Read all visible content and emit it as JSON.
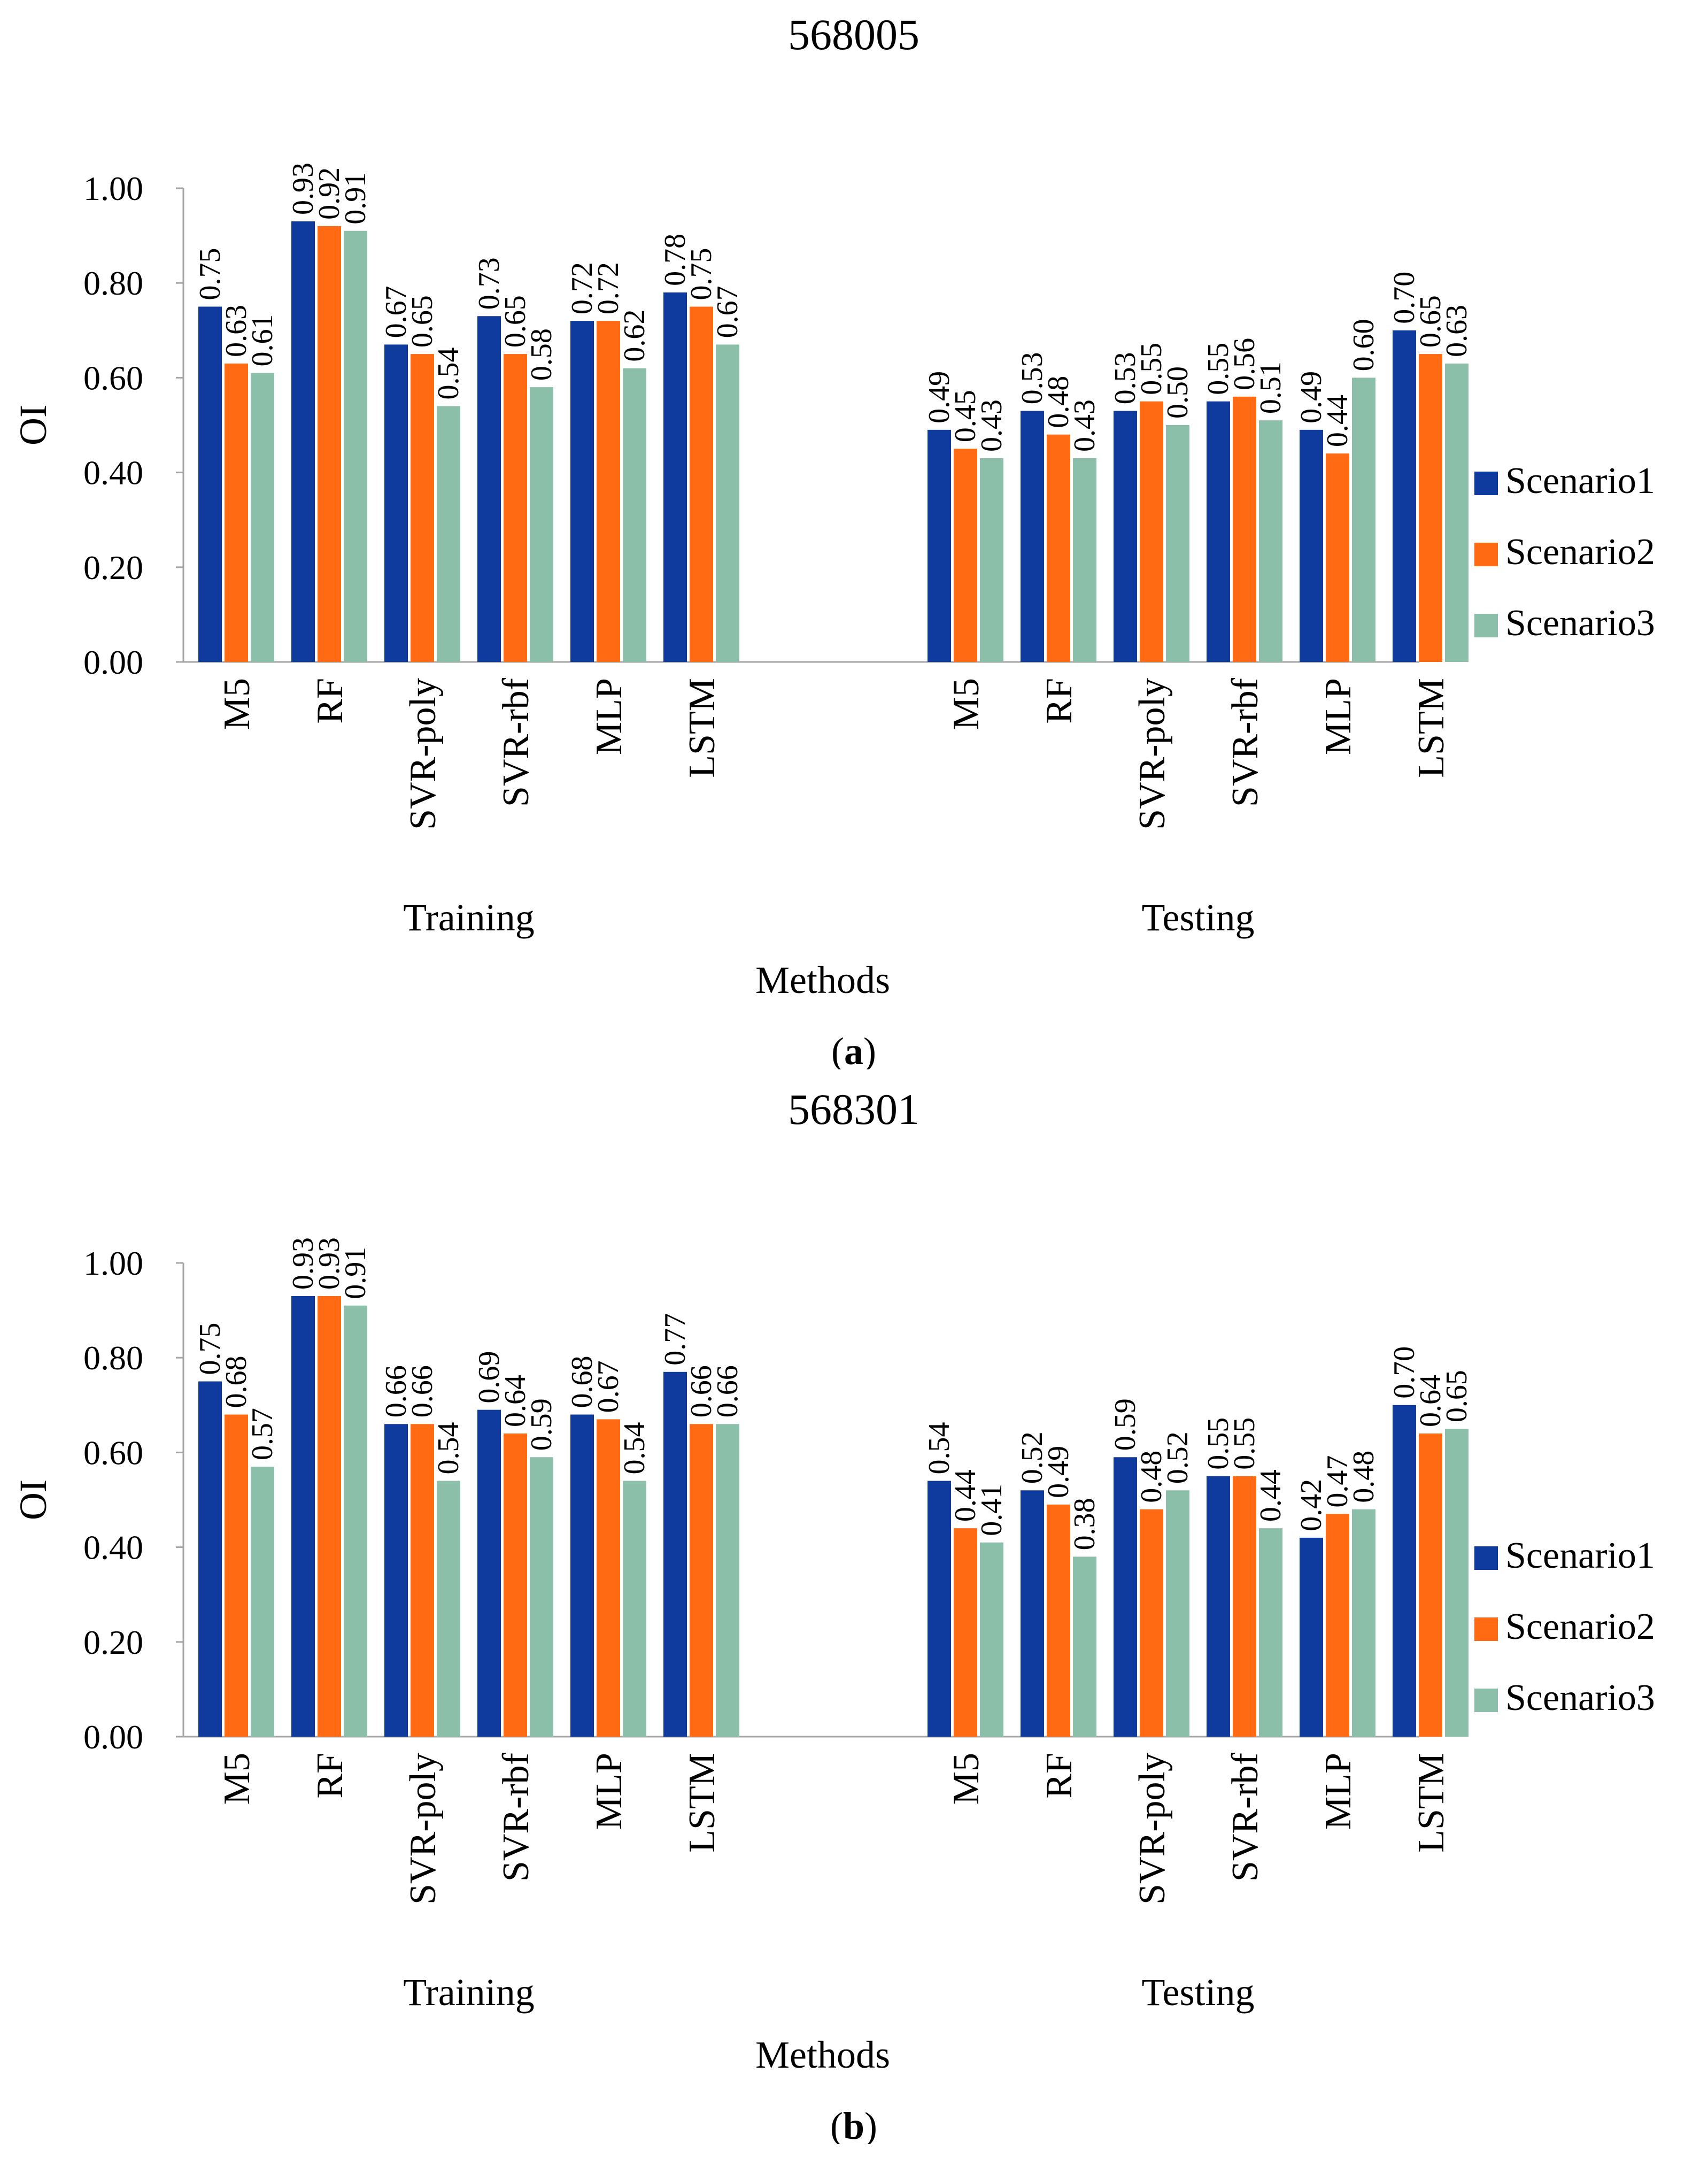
{
  "chart_data": [
    {
      "type": "bar",
      "title": "568005",
      "xlabel": "Methods",
      "ylabel": "OI",
      "ylim": [
        0,
        1
      ],
      "yticks": [
        "0.00",
        "0.20",
        "0.40",
        "0.60",
        "0.80",
        "1.00"
      ],
      "groups": [
        "Training",
        "Testing"
      ],
      "categories": [
        "M5",
        "RF",
        "SVR-poly",
        "SVR-rbf",
        "MLP",
        "LSTM"
      ],
      "series": [
        {
          "name": "Scenario1",
          "color": "#0f3a9e",
          "values": [
            [
              0.75,
              0.93,
              0.67,
              0.73,
              0.72,
              0.78
            ],
            [
              0.49,
              0.53,
              0.53,
              0.55,
              0.49,
              0.7
            ]
          ],
          "labels": [
            [
              "0.75",
              "0.93",
              "0.67",
              "0.73",
              "0.72",
              "0.78"
            ],
            [
              "0.49",
              "0.53",
              "0.53",
              "0.55",
              "0.49",
              "0.70"
            ]
          ]
        },
        {
          "name": "Scenario2",
          "color": "#ff6a13",
          "values": [
            [
              0.63,
              0.92,
              0.65,
              0.65,
              0.72,
              0.75
            ],
            [
              0.45,
              0.48,
              0.55,
              0.56,
              0.44,
              0.65
            ]
          ],
          "labels": [
            [
              "0.63",
              "0.92",
              "0.65",
              "0.65",
              "0.72",
              "0.75"
            ],
            [
              "0.45",
              "0.48",
              "0.55",
              "0.56",
              "0.44",
              "0.65"
            ]
          ]
        },
        {
          "name": "Scenario3",
          "color": "#8cbfaa",
          "values": [
            [
              0.61,
              0.91,
              0.54,
              0.58,
              0.62,
              0.67
            ],
            [
              0.43,
              0.43,
              0.5,
              0.51,
              0.6,
              0.63
            ]
          ],
          "labels": [
            [
              "0.61",
              "0.91",
              "0.54",
              "0.58",
              "0.62",
              "0.67"
            ],
            [
              "0.43",
              "0.43",
              "0.50",
              "0.51",
              "0.60",
              "0.63"
            ]
          ]
        }
      ],
      "legend": "right",
      "grid": false,
      "subfigure_label": "(a)"
    },
    {
      "type": "bar",
      "title": "568301",
      "xlabel": "Methods",
      "ylabel": "OI",
      "ylim": [
        0,
        1
      ],
      "yticks": [
        "0.00",
        "0.20",
        "0.40",
        "0.60",
        "0.80",
        "1.00"
      ],
      "groups": [
        "Training",
        "Testing"
      ],
      "categories": [
        "M5",
        "RF",
        "SVR-poly",
        "SVR-rbf",
        "MLP",
        "LSTM"
      ],
      "series": [
        {
          "name": "Scenario1",
          "color": "#0f3a9e",
          "values": [
            [
              0.75,
              0.93,
              0.66,
              0.69,
              0.68,
              0.77
            ],
            [
              0.54,
              0.52,
              0.59,
              0.55,
              0.42,
              0.7
            ]
          ],
          "labels": [
            [
              "0.75",
              "0.93",
              "0.66",
              "0.69",
              "0.68",
              "0.77"
            ],
            [
              "0.54",
              "0.52",
              "0.59",
              "0.55",
              "0.42",
              "0.70"
            ]
          ]
        },
        {
          "name": "Scenario2",
          "color": "#ff6a13",
          "values": [
            [
              0.68,
              0.93,
              0.66,
              0.64,
              0.67,
              0.66
            ],
            [
              0.44,
              0.49,
              0.48,
              0.55,
              0.47,
              0.64
            ]
          ],
          "labels": [
            [
              "0.68",
              "0.93",
              "0.66",
              "0.64",
              "0.67",
              "0.66"
            ],
            [
              "0.44",
              "0.49",
              "0.48",
              "0.55",
              "0.47",
              "0.64"
            ]
          ]
        },
        {
          "name": "Scenario3",
          "color": "#8cbfaa",
          "values": [
            [
              0.57,
              0.91,
              0.54,
              0.59,
              0.54,
              0.66
            ],
            [
              0.41,
              0.38,
              0.52,
              0.44,
              0.48,
              0.65
            ]
          ],
          "labels": [
            [
              "0.57",
              "0.91",
              "0.54",
              "0.59",
              "0.54",
              "0.66"
            ],
            [
              "0.41",
              "0.38",
              "0.52",
              "0.44",
              "0.48",
              "0.65"
            ]
          ]
        }
      ],
      "legend": "right",
      "grid": false,
      "subfigure_label": "(b)"
    }
  ]
}
